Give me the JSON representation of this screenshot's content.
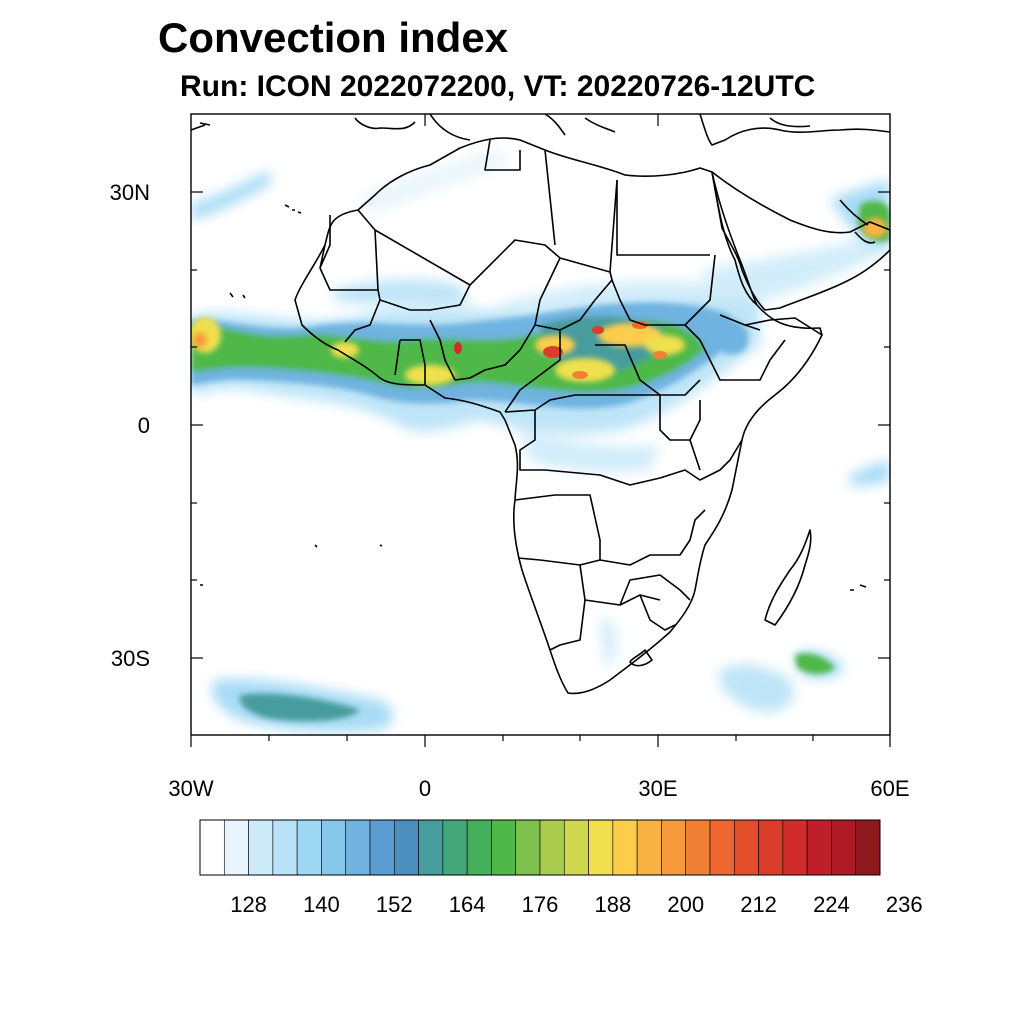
{
  "header": {
    "title": "Convection index",
    "subtitle": "Run: ICON 2022072200,  VT: 20220726-12UTC"
  },
  "map": {
    "lon_range": [
      -30,
      60
    ],
    "lat_range": [
      -40,
      40
    ],
    "lat_labels": [
      {
        "lat": 30,
        "text": "30N"
      },
      {
        "lat": 0,
        "text": "0"
      },
      {
        "lat": -30,
        "text": "30S"
      }
    ],
    "lon_labels": [
      {
        "lon": -30,
        "text": "30W"
      },
      {
        "lon": 0,
        "text": "0"
      },
      {
        "lon": 30,
        "text": "30E"
      },
      {
        "lon": 60,
        "text": "60E"
      }
    ]
  },
  "colorbar": {
    "colors": [
      "#ffffff",
      "#e8f5fc",
      "#cdebf9",
      "#b7e2f7",
      "#9fd8f5",
      "#86c7ec",
      "#70b3e0",
      "#5b9dd2",
      "#4b8fbf",
      "#479c9d",
      "#44a77c",
      "#44b05c",
      "#50b848",
      "#7dc04b",
      "#a9cc4e",
      "#cfd94f",
      "#f0e04e",
      "#fbcd4b",
      "#f9b244",
      "#f79a3c",
      "#f28034",
      "#ed672e",
      "#e44f2a",
      "#dc3c2a",
      "#d22b2b",
      "#c11e2c",
      "#ad1a25",
      "#8f1a1e"
    ],
    "labels": [
      "128",
      "140",
      "152",
      "164",
      "176",
      "188",
      "200",
      "212",
      "224",
      "236"
    ]
  }
}
